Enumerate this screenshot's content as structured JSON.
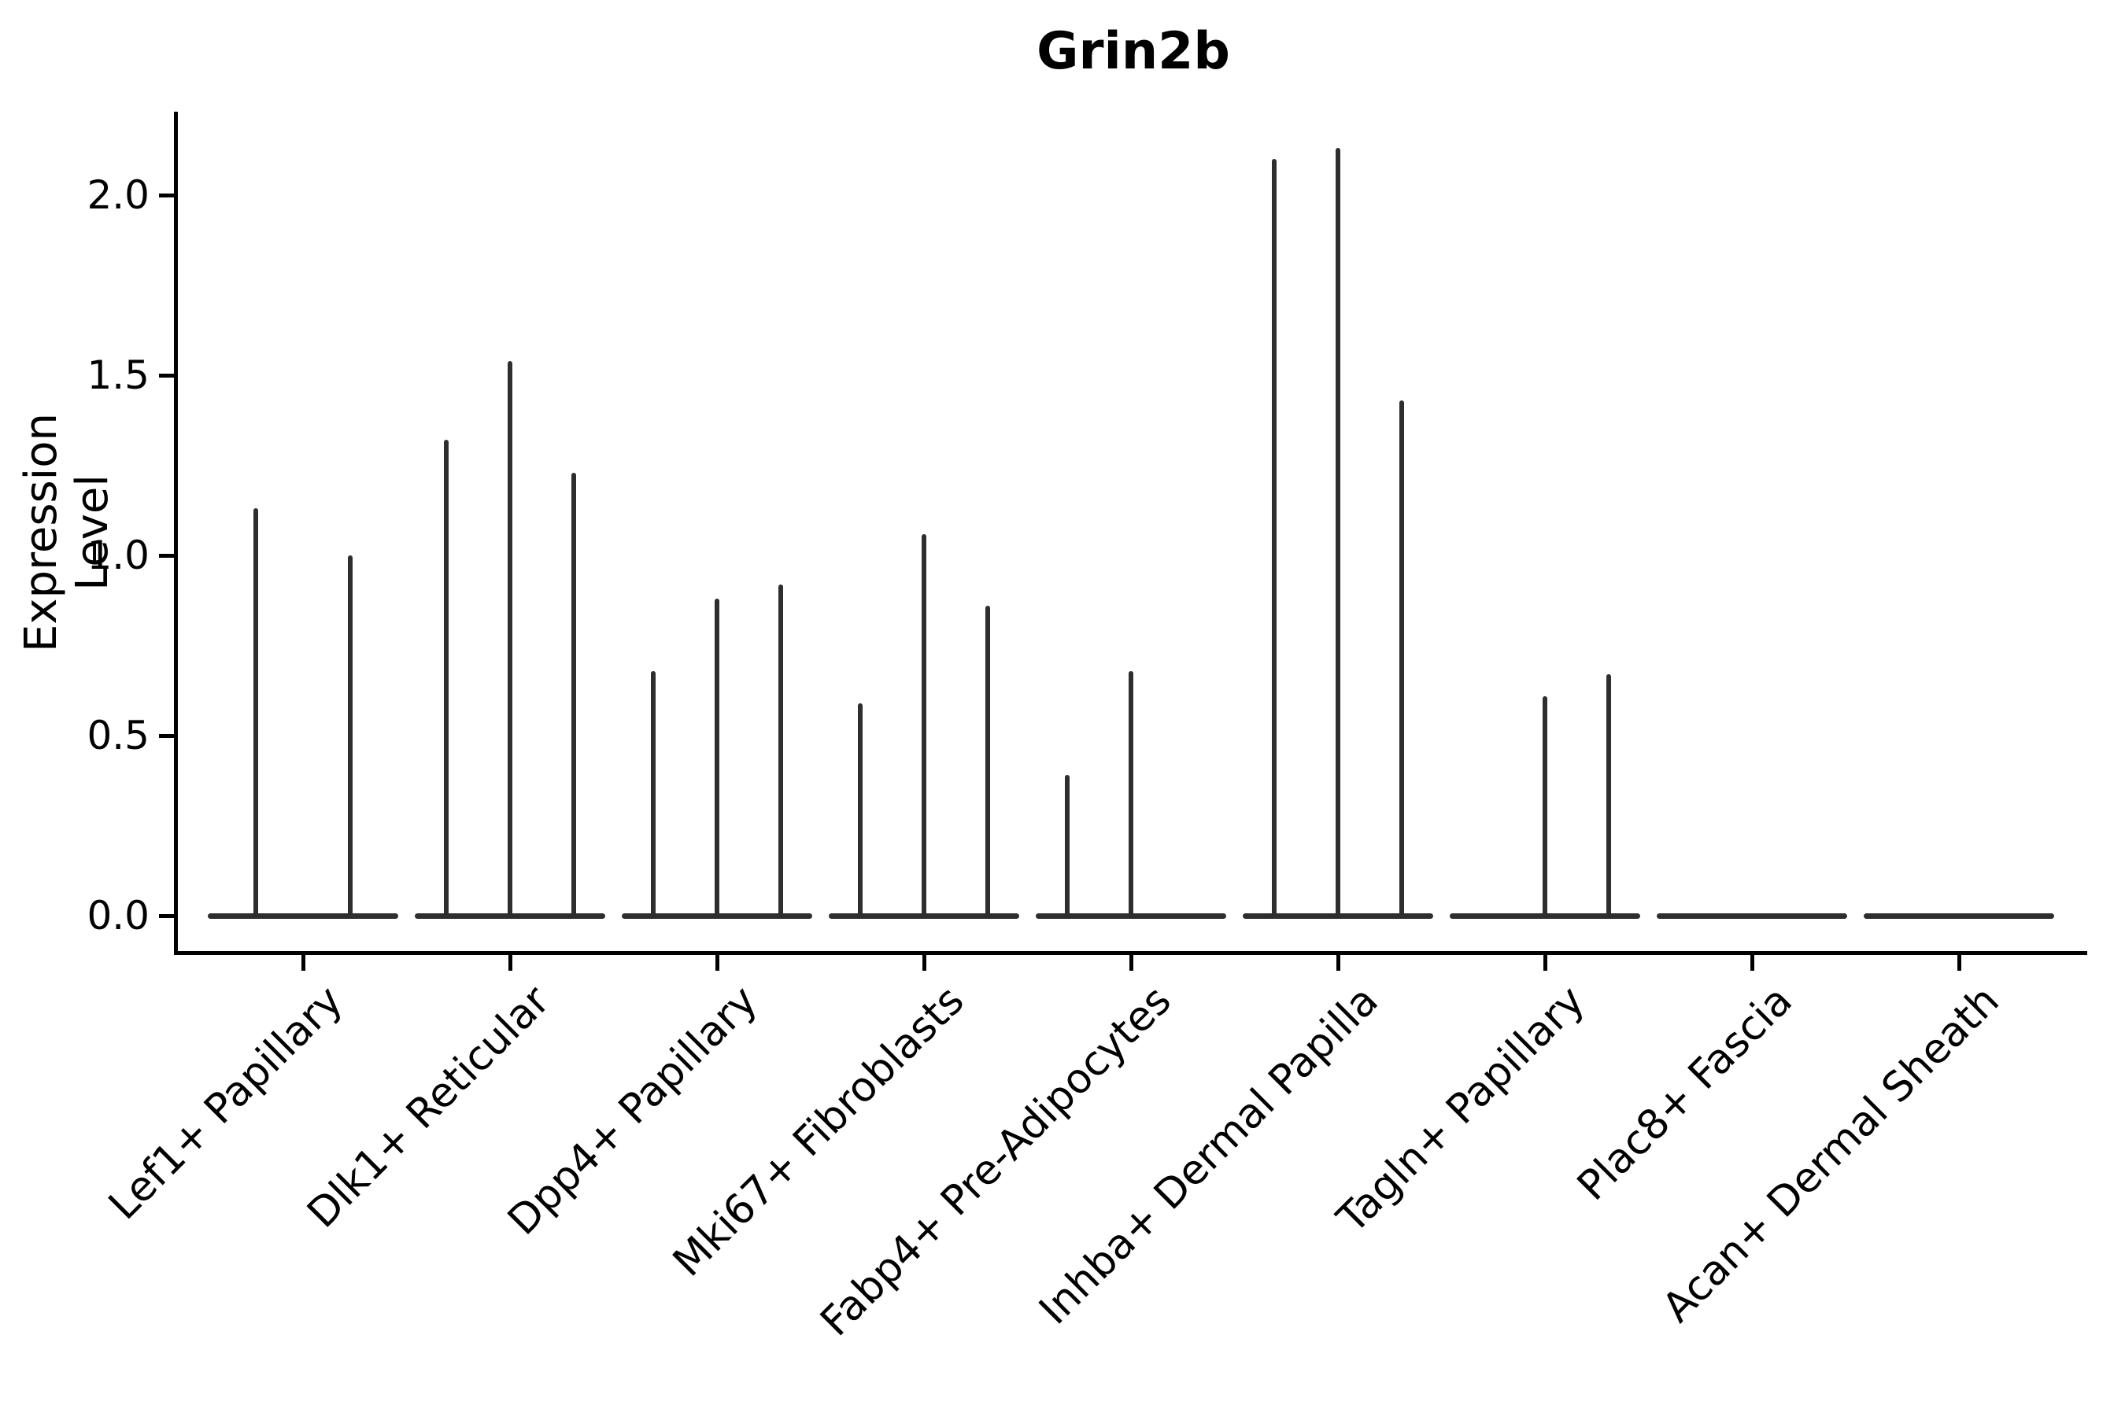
{
  "chart_data": {
    "type": "violin",
    "title": "Grin2b",
    "xlabel": "",
    "ylabel": "Expression Level",
    "ylim": [
      -0.11,
      2.24
    ],
    "grid": false,
    "legend": "none",
    "violin_color": "#2e2e2e",
    "axis_color": "#000000",
    "yticks": [
      {
        "label": "0.0",
        "value": 0.0
      },
      {
        "label": "0.5",
        "value": 0.5
      },
      {
        "label": "1.0",
        "value": 1.0
      },
      {
        "label": "1.5",
        "value": 1.5
      },
      {
        "label": "2.0",
        "value": 2.0
      }
    ],
    "categories": [
      {
        "label": "Lef1+ Papillary",
        "violin_max_values": [
          1.13,
          1.0
        ]
      },
      {
        "label": "Dlk1+ Reticular",
        "violin_max_values": [
          1.32,
          1.54,
          1.23
        ]
      },
      {
        "label": "Dpp4+ Papillary",
        "violin_max_values": [
          0.68,
          0.88,
          0.92
        ]
      },
      {
        "label": "Mki67+ Fibroblasts",
        "violin_max_values": [
          0.59,
          1.06,
          0.86
        ]
      },
      {
        "label": "Fabp4+ Pre-Adipocytes",
        "violin_max_values": [
          0.39,
          0.68,
          0
        ]
      },
      {
        "label": "Inhba+ Dermal Papilla",
        "violin_max_values": [
          2.1,
          2.13,
          1.43
        ]
      },
      {
        "label": "Tagln+ Papillary",
        "violin_max_values": [
          0,
          0.61,
          0.67
        ]
      },
      {
        "label": "Plac8+ Fascia",
        "violin_max_values": [
          0,
          0,
          0
        ]
      },
      {
        "label": "Acan+ Dermal Sheath",
        "violin_max_values": [
          0,
          0,
          0
        ]
      }
    ]
  }
}
